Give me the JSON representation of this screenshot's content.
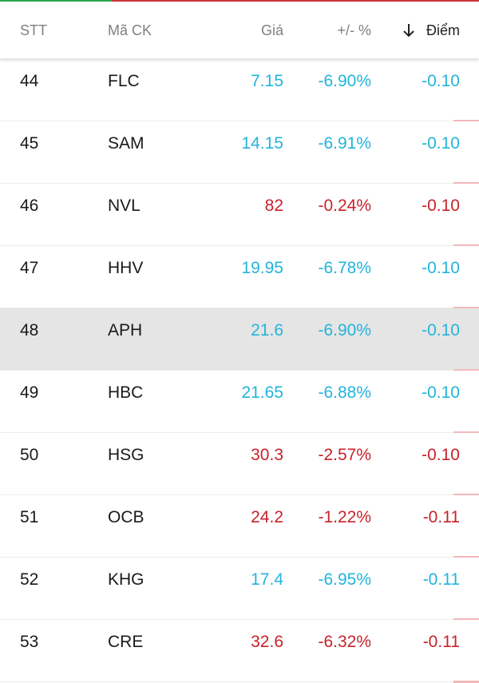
{
  "header": {
    "stt": "STT",
    "code": "Mã CK",
    "price": "Giá",
    "change_pct": "+/- %",
    "points": "Điểm",
    "sort_icon": "arrow-down-icon"
  },
  "colors": {
    "up_down_cyan": "#23b4dc",
    "red": "#c8222a",
    "highlight_row": "#e5e5e5"
  },
  "rows": [
    {
      "stt": "44",
      "code": "FLC",
      "price": "7.15",
      "pct": "-6.90%",
      "pts": "-0.10",
      "color": "cyan"
    },
    {
      "stt": "45",
      "code": "SAM",
      "price": "14.15",
      "pct": "-6.91%",
      "pts": "-0.10",
      "color": "cyan"
    },
    {
      "stt": "46",
      "code": "NVL",
      "price": "82",
      "pct": "-0.24%",
      "pts": "-0.10",
      "color": "red"
    },
    {
      "stt": "47",
      "code": "HHV",
      "price": "19.95",
      "pct": "-6.78%",
      "pts": "-0.10",
      "color": "cyan"
    },
    {
      "stt": "48",
      "code": "APH",
      "price": "21.6",
      "pct": "-6.90%",
      "pts": "-0.10",
      "color": "cyan",
      "highlight": true
    },
    {
      "stt": "49",
      "code": "HBC",
      "price": "21.65",
      "pct": "-6.88%",
      "pts": "-0.10",
      "color": "cyan"
    },
    {
      "stt": "50",
      "code": "HSG",
      "price": "30.3",
      "pct": "-2.57%",
      "pts": "-0.10",
      "color": "red"
    },
    {
      "stt": "51",
      "code": "OCB",
      "price": "24.2",
      "pct": "-1.22%",
      "pts": "-0.11",
      "color": "red"
    },
    {
      "stt": "52",
      "code": "KHG",
      "price": "17.4",
      "pct": "-6.95%",
      "pts": "-0.11",
      "color": "cyan"
    },
    {
      "stt": "53",
      "code": "CRE",
      "price": "32.6",
      "pct": "-6.32%",
      "pts": "-0.11",
      "color": "red"
    }
  ]
}
